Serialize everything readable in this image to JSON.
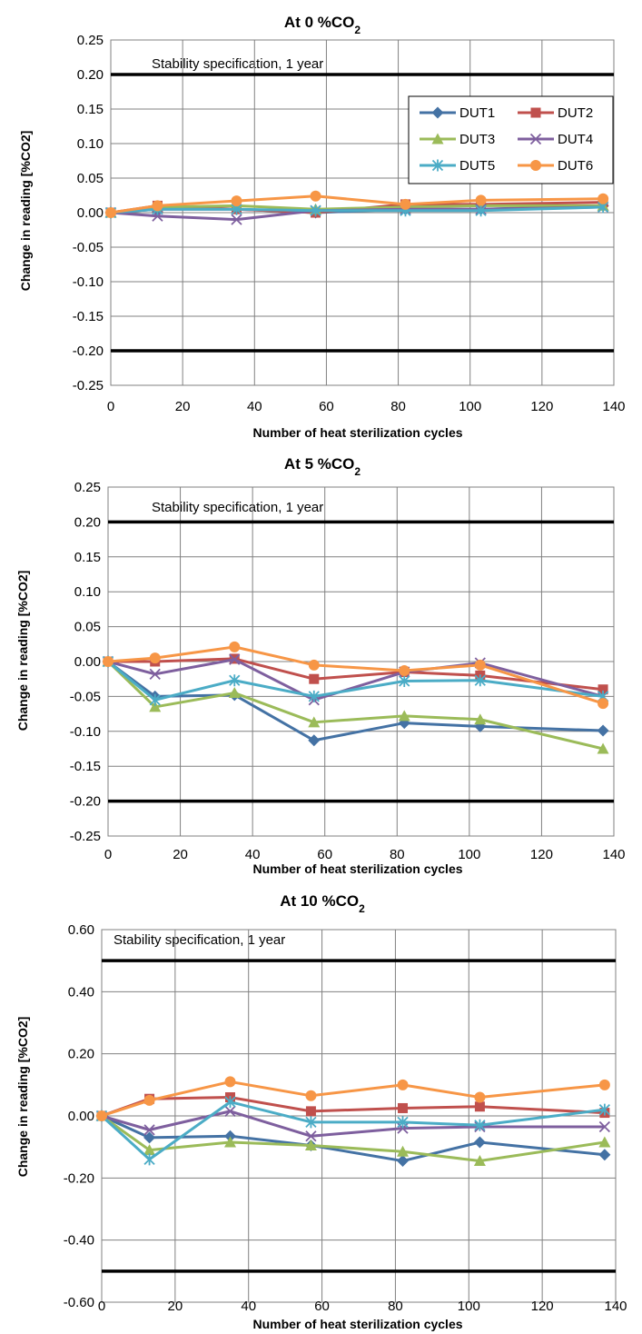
{
  "colors": {
    "DUT1": "#4472A4",
    "DUT2": "#C0504D",
    "DUT3": "#9BBB59",
    "DUT4": "#7E5F9E",
    "DUT5": "#4BACC6",
    "DUT6": "#F79646",
    "spec": "#000000",
    "grid": "#808080"
  },
  "chart_data": [
    {
      "type": "line",
      "title": "At 0 %CO",
      "title_sub": "2",
      "xlabel": "Number of heat sterilization cycles",
      "ylabel": "Change in reading [%CO2]",
      "xlim": [
        0,
        140
      ],
      "ylim": [
        -0.25,
        0.25
      ],
      "x_ticks": [
        0,
        20,
        40,
        60,
        80,
        100,
        120,
        140
      ],
      "y_ticks": [
        0.25,
        0.2,
        0.15,
        0.1,
        0.05,
        0.0,
        -0.05,
        -0.1,
        -0.15,
        -0.2,
        -0.25
      ],
      "y_tick_labels": [
        "0.25",
        "0.20",
        "0.15",
        "0.10",
        "0.05",
        "0.00",
        "-0.05",
        "-0.10",
        "-0.15",
        "-0.20",
        "-0.25"
      ],
      "grid": true,
      "legend": "top-right",
      "annotation": "Stability specification, 1 year",
      "spec_limits": [
        0.2,
        -0.2
      ],
      "x": [
        0,
        13,
        35,
        57,
        82,
        103,
        137
      ],
      "series": [
        {
          "name": "DUT1",
          "marker": "diamond",
          "values": [
            0.0,
            0.005,
            0.005,
            0.0,
            0.005,
            0.005,
            0.01
          ]
        },
        {
          "name": "DUT2",
          "marker": "square",
          "values": [
            0.0,
            0.01,
            0.005,
            0.0,
            0.012,
            0.012,
            0.015
          ]
        },
        {
          "name": "DUT3",
          "marker": "triangle",
          "values": [
            0.0,
            0.008,
            0.01,
            0.005,
            0.008,
            0.01,
            0.01
          ]
        },
        {
          "name": "DUT4",
          "marker": "x",
          "values": [
            0.0,
            -0.005,
            -0.01,
            0.003,
            0.005,
            0.005,
            0.008
          ]
        },
        {
          "name": "DUT5",
          "marker": "asterisk",
          "values": [
            0.0,
            0.005,
            0.005,
            0.003,
            0.003,
            0.003,
            0.008
          ]
        },
        {
          "name": "DUT6",
          "marker": "circle",
          "values": [
            0.0,
            0.01,
            0.017,
            0.024,
            0.012,
            0.018,
            0.02
          ]
        }
      ]
    },
    {
      "type": "line",
      "title": "At 5 %CO",
      "title_sub": "2",
      "xlabel": "Number of heat sterilization cycles",
      "ylabel": "Change in reading [%CO2]",
      "xlim": [
        0,
        140
      ],
      "ylim": [
        -0.25,
        0.25
      ],
      "x_ticks": [
        0,
        20,
        40,
        60,
        80,
        100,
        120,
        140
      ],
      "y_ticks": [
        0.25,
        0.2,
        0.15,
        0.1,
        0.05,
        0.0,
        -0.05,
        -0.1,
        -0.15,
        -0.2,
        -0.25
      ],
      "y_tick_labels": [
        "0.25",
        "0.20",
        "0.15",
        "0.10",
        "0.05",
        "0.00",
        "-0.05",
        "-0.10",
        "-0.15",
        "-0.20",
        "-0.25"
      ],
      "grid": true,
      "annotation": "Stability specification, 1 year",
      "spec_limits": [
        0.2,
        -0.2
      ],
      "x": [
        0,
        13,
        35,
        57,
        82,
        103,
        137
      ],
      "series": [
        {
          "name": "DUT1",
          "marker": "diamond",
          "values": [
            0.0,
            -0.05,
            -0.048,
            -0.113,
            -0.088,
            -0.093,
            -0.099
          ]
        },
        {
          "name": "DUT2",
          "marker": "square",
          "values": [
            0.0,
            0.0,
            0.004,
            -0.025,
            -0.015,
            -0.02,
            -0.04
          ]
        },
        {
          "name": "DUT3",
          "marker": "triangle",
          "values": [
            0.0,
            -0.065,
            -0.045,
            -0.087,
            -0.078,
            -0.083,
            -0.125
          ]
        },
        {
          "name": "DUT4",
          "marker": "x",
          "values": [
            0.0,
            -0.018,
            0.003,
            -0.055,
            -0.015,
            -0.002,
            -0.05
          ]
        },
        {
          "name": "DUT5",
          "marker": "asterisk",
          "values": [
            0.0,
            -0.055,
            -0.027,
            -0.05,
            -0.028,
            -0.027,
            -0.05
          ]
        },
        {
          "name": "DUT6",
          "marker": "circle",
          "values": [
            0.0,
            0.005,
            0.021,
            -0.005,
            -0.013,
            -0.005,
            -0.06
          ]
        }
      ]
    },
    {
      "type": "line",
      "title": "At 10 %CO",
      "title_sub": "2",
      "xlabel": "Number of heat sterilization cycles",
      "ylabel": "Change in reading [%CO2]",
      "xlim": [
        0,
        140
      ],
      "ylim": [
        -0.6,
        0.6
      ],
      "x_ticks": [
        0,
        20,
        40,
        60,
        80,
        100,
        120,
        140
      ],
      "y_ticks": [
        0.6,
        0.4,
        0.2,
        0.0,
        -0.2,
        -0.4,
        -0.6
      ],
      "y_tick_labels": [
        "0.60",
        "0.40",
        "0.20",
        "0.00",
        "-0.20",
        "-0.40",
        "-0.60"
      ],
      "grid": true,
      "annotation": "Stability specification, 1 year",
      "spec_limits": [
        0.5,
        -0.5
      ],
      "x": [
        0,
        13,
        35,
        57,
        82,
        103,
        137
      ],
      "series": [
        {
          "name": "DUT1",
          "marker": "diamond",
          "values": [
            0.0,
            -0.07,
            -0.065,
            -0.095,
            -0.145,
            -0.085,
            -0.125
          ]
        },
        {
          "name": "DUT2",
          "marker": "square",
          "values": [
            0.0,
            0.055,
            0.06,
            0.015,
            0.025,
            0.03,
            0.01
          ]
        },
        {
          "name": "DUT3",
          "marker": "triangle",
          "values": [
            0.0,
            -0.11,
            -0.085,
            -0.095,
            -0.115,
            -0.145,
            -0.085
          ]
        },
        {
          "name": "DUT4",
          "marker": "x",
          "values": [
            0.0,
            -0.045,
            0.015,
            -0.065,
            -0.04,
            -0.035,
            -0.035
          ]
        },
        {
          "name": "DUT5",
          "marker": "asterisk",
          "values": [
            0.0,
            -0.14,
            0.045,
            -0.02,
            -0.02,
            -0.03,
            0.02
          ]
        },
        {
          "name": "DUT6",
          "marker": "circle",
          "values": [
            0.0,
            0.05,
            0.11,
            0.065,
            0.1,
            0.06,
            0.1
          ]
        }
      ]
    }
  ]
}
